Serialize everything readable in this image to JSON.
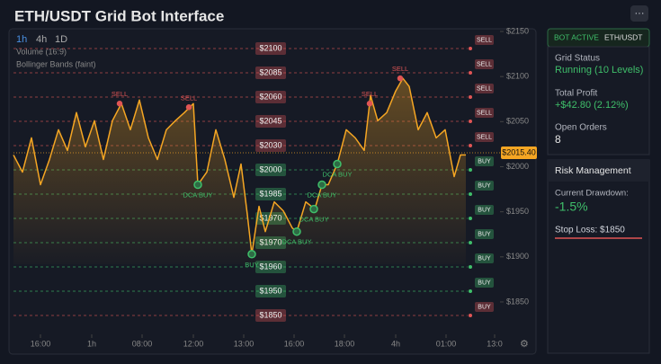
{
  "header": {
    "title": "ETH/USDT Grid Bot Interface",
    "menu": "···"
  },
  "timeframes": [
    "1h",
    "4h",
    "1D"
  ],
  "legend": [
    "Volume (16:9)",
    "Bollinger Bands (faint)"
  ],
  "chart_data": {
    "type": "line",
    "x": [
      0,
      10,
      20,
      30,
      40,
      50,
      60,
      70,
      80,
      90,
      100,
      110,
      120,
      130,
      140,
      150,
      160,
      170,
      180,
      190,
      200,
      205,
      215,
      225,
      235,
      245,
      253,
      260,
      265,
      273,
      280,
      290,
      300,
      310,
      315,
      325,
      335,
      343,
      350,
      360,
      370,
      380,
      390,
      397,
      405,
      415,
      425,
      433,
      440,
      450,
      460,
      470,
      480,
      490,
      497,
      503
    ],
    "series": [
      {
        "name": "ETH/USDT",
        "color": "#f5a623",
        "values": [
          2013,
          1994,
          2032,
          1980,
          2008,
          2041,
          2018,
          2060,
          2022,
          2051,
          2008,
          2051,
          2070,
          2041,
          2074,
          2032,
          2008,
          2041,
          2051,
          2060,
          2070,
          1980,
          1994,
          2041,
          2008,
          1966,
          2003,
          1947,
          1903,
          1956,
          1928,
          1961,
          1951,
          1932,
          1928,
          1961,
          1953,
          1980,
          1980,
          2003,
          2041,
          2032,
          2018,
          2079,
          2051,
          2060,
          2084,
          2098,
          2089,
          2041,
          2060,
          2032,
          2041,
          1989,
          2013,
          2013
        ]
      }
    ],
    "xlim": [
      0,
      545
    ],
    "xticks": [
      {
        "value": 30,
        "label": "16:00"
      },
      {
        "value": 87,
        "label": "1h"
      },
      {
        "value": 143,
        "label": "08:00"
      },
      {
        "value": 200,
        "label": "12:00"
      },
      {
        "value": 256,
        "label": "13:00"
      },
      {
        "value": 312,
        "label": "16:00"
      },
      {
        "value": 368,
        "label": "18:00"
      },
      {
        "value": 425,
        "label": "4h"
      },
      {
        "value": 481,
        "label": "01:00"
      },
      {
        "value": 535,
        "label": "13:0"
      }
    ],
    "ylim": [
      1834,
      2150
    ],
    "yticks": [
      {
        "value": 1850,
        "label": "$1850"
      },
      {
        "value": 1900,
        "label": "$1900"
      },
      {
        "value": 1950,
        "label": "$1950"
      },
      {
        "value": 2000,
        "label": "$2000"
      },
      {
        "value": 2050,
        "label": "$2050"
      },
      {
        "value": 2100,
        "label": "$2100"
      },
      {
        "value": 2150,
        "label": "$2150"
      }
    ],
    "current_price": {
      "value": 2015.4,
      "label": "$2015.40"
    },
    "grid_levels": [
      {
        "label": "$2100",
        "tag": "SELL",
        "color": "#e05555"
      },
      {
        "label": "$2085",
        "tag": "SELL",
        "color": "#e05555"
      },
      {
        "label": "$2060",
        "tag": "SELL",
        "color": "#e05555"
      },
      {
        "label": "$2045",
        "tag": "SELL",
        "color": "#e05555"
      },
      {
        "label": "$2030",
        "tag": "SELL",
        "color": "#e05555"
      },
      {
        "label": "$2000",
        "tag": "BUY",
        "color": "#3fbf6a"
      },
      {
        "label": "$1985",
        "tag": "BUY",
        "color": "#3fbf6a"
      },
      {
        "label": "$1970",
        "tag": "BUY",
        "color": "#3fbf6a"
      },
      {
        "label": "$1970",
        "tag": "BUY",
        "color": "#3fbf6a"
      },
      {
        "label": "$1960",
        "tag": "BUY",
        "color": "#3fbf6a"
      },
      {
        "label": "$1950",
        "tag": "BUY",
        "color": "#3fbf6a"
      },
      {
        "label": "$1850",
        "tag": "BUY",
        "color": "#e05555"
      }
    ],
    "annotations": [
      {
        "text": "SELL",
        "x": 118,
        "y": 2070,
        "color": "#e05555"
      },
      {
        "text": "SELL",
        "x": 195,
        "y": 2066,
        "color": "#e05555"
      },
      {
        "text": "SELL",
        "x": 396,
        "y": 2070,
        "color": "#e05555"
      },
      {
        "text": "SELL",
        "x": 430,
        "y": 2098,
        "color": "#e05555"
      },
      {
        "text": "DCA BUY",
        "x": 205,
        "y": 1980,
        "color": "#3fbf6a"
      },
      {
        "text": "BUY",
        "x": 265,
        "y": 1903,
        "color": "#3fbf6a"
      },
      {
        "text": "DCA BUY",
        "x": 315,
        "y": 1928,
        "color": "#3fbf6a"
      },
      {
        "text": "DCA BUY",
        "x": 334,
        "y": 1953,
        "color": "#3fbf6a"
      },
      {
        "text": "DCA BUY",
        "x": 343,
        "y": 1980,
        "color": "#3fbf6a"
      },
      {
        "text": "DCA BUY",
        "x": 360,
        "y": 2003,
        "color": "#3fbf6a"
      }
    ]
  },
  "sidebar": {
    "status": "BOT ACTIVE",
    "pair": "ETH/USDT",
    "items": [
      {
        "label": "Grid Status",
        "value": "Running (10 Levels)"
      },
      {
        "label": "Total Profit",
        "value": "+$42.80 (2.12%)"
      },
      {
        "label": "Open Orders",
        "value": "8"
      }
    ],
    "risk": {
      "title": "Risk Management",
      "drawdown_label": "Current Drawdown:",
      "drawdown": "-1.5%",
      "stop_loss": "Stop Loss: $1850"
    }
  }
}
